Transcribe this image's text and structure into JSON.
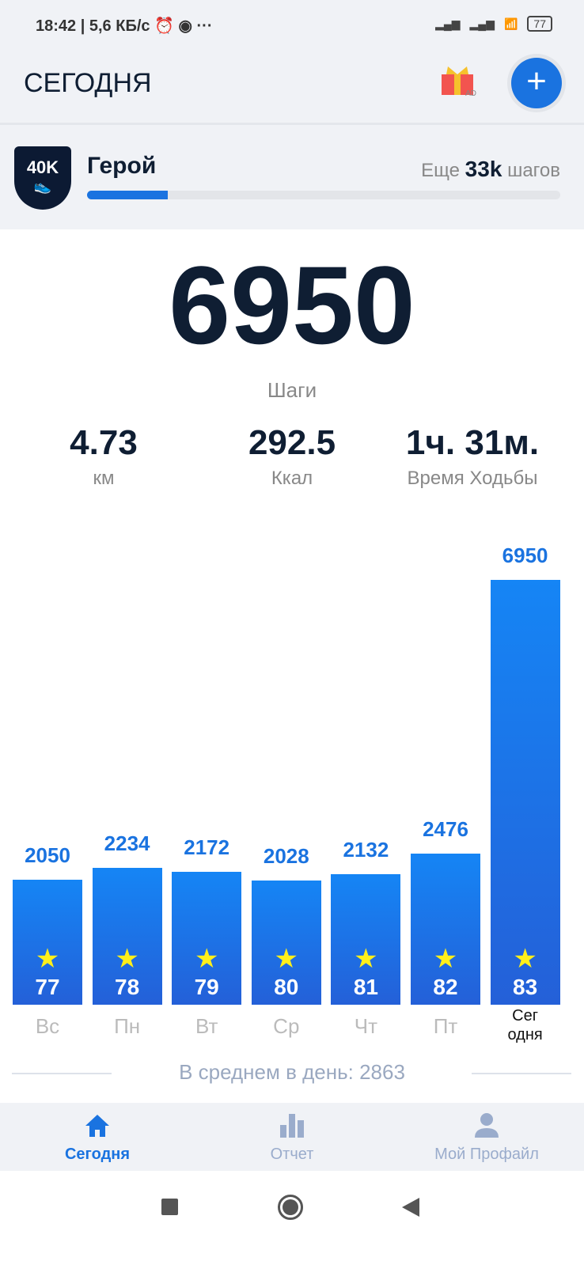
{
  "status_bar": {
    "time": "18:42",
    "net_speed": "| 5,6 КБ/с",
    "battery": "77"
  },
  "header": {
    "title": "СЕГОДНЯ",
    "gift_badge": "AD"
  },
  "level": {
    "badge": "40K",
    "name": "Герой",
    "remain_prefix": "Еще",
    "remain_value": "33k",
    "remain_suffix": "шагов",
    "progress_pct": 17
  },
  "today": {
    "steps": "6950",
    "steps_label": "Шаги"
  },
  "stats": [
    {
      "value": "4.73",
      "label": "км"
    },
    {
      "value": "292.5",
      "label": "Ккал"
    },
    {
      "value": "1ч. 31м.",
      "label": "Время Ходьбы"
    }
  ],
  "chart_data": {
    "type": "bar",
    "categories": [
      "Вс",
      "Пн",
      "Вт",
      "Ср",
      "Чт",
      "Пт",
      "Сег одня"
    ],
    "values": [
      2050,
      2234,
      2172,
      2028,
      2132,
      2476,
      6950
    ],
    "bar_badges": [
      "77",
      "78",
      "79",
      "80",
      "81",
      "82",
      "83"
    ],
    "ylim": [
      0,
      6950
    ],
    "color": "#1a73e0"
  },
  "average": "В среднем в день: 2863",
  "nav": {
    "items": [
      {
        "label": "Сегодня"
      },
      {
        "label": "Отчет"
      },
      {
        "label": "Мой Профайл"
      }
    ]
  }
}
